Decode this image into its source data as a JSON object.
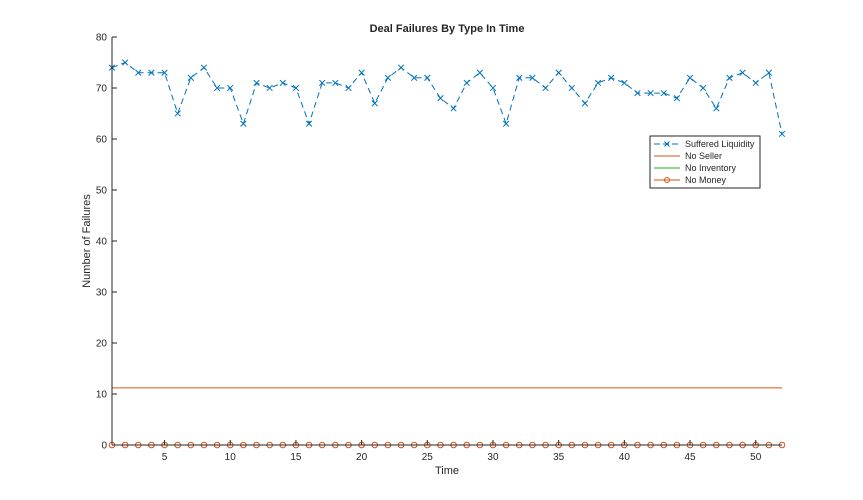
{
  "chart_data": {
    "type": "line",
    "title": "Deal Failures By Type In Time",
    "xlabel": "Time",
    "ylabel": "Number of Failures",
    "xlim": [
      1,
      52
    ],
    "ylim": [
      0,
      80
    ],
    "xticks": [
      5,
      10,
      15,
      20,
      25,
      30,
      35,
      40,
      45,
      50
    ],
    "yticks": [
      0,
      10,
      20,
      30,
      40,
      50,
      60,
      70,
      80
    ],
    "grid": false,
    "legend_position": "right",
    "x": [
      1,
      2,
      3,
      4,
      5,
      6,
      7,
      8,
      9,
      10,
      11,
      12,
      13,
      14,
      15,
      16,
      17,
      18,
      19,
      20,
      21,
      22,
      23,
      24,
      25,
      26,
      27,
      28,
      29,
      30,
      31,
      32,
      33,
      34,
      35,
      36,
      37,
      38,
      39,
      40,
      41,
      42,
      43,
      44,
      45,
      46,
      47,
      48,
      49,
      50,
      51,
      52
    ],
    "series": [
      {
        "name": "Suffered Liquidity",
        "color": "#0072bd",
        "line_style": "dashed",
        "marker": "x",
        "values": [
          74,
          75,
          73,
          73,
          73,
          65,
          72,
          74,
          70,
          70,
          63,
          71,
          70,
          71,
          70,
          63,
          71,
          71,
          70,
          73,
          67,
          72,
          74,
          72,
          72,
          68,
          66,
          71,
          73,
          70,
          63,
          72,
          72,
          70,
          73,
          70,
          67,
          71,
          72,
          71,
          69,
          69,
          69,
          68,
          72,
          70,
          66,
          72,
          73,
          71,
          73,
          61
        ]
      },
      {
        "name": "No Seller",
        "color": "#d95319",
        "line_style": "solid",
        "marker": "none",
        "values": [
          11.2,
          11.2,
          11.2,
          11.2,
          11.2,
          11.2,
          11.2,
          11.2,
          11.2,
          11.2,
          11.2,
          11.2,
          11.2,
          11.2,
          11.2,
          11.2,
          11.2,
          11.2,
          11.2,
          11.2,
          11.2,
          11.2,
          11.2,
          11.2,
          11.2,
          11.2,
          11.2,
          11.2,
          11.2,
          11.2,
          11.2,
          11.2,
          11.2,
          11.2,
          11.2,
          11.2,
          11.2,
          11.2,
          11.2,
          11.2,
          11.2,
          11.2,
          11.2,
          11.2,
          11.2,
          11.2,
          11.2,
          11.2,
          11.2,
          11.2,
          11.2,
          11.2
        ]
      },
      {
        "name": "No Inventory",
        "color": "#22b522",
        "line_style": "solid",
        "marker": "none",
        "values": [
          0,
          0,
          0,
          0,
          0,
          0,
          0,
          0,
          0,
          0,
          0,
          0,
          0,
          0,
          0,
          0,
          0,
          0,
          0,
          0,
          0,
          0,
          0,
          0,
          0,
          0,
          0,
          0,
          0,
          0,
          0,
          0,
          0,
          0,
          0,
          0,
          0,
          0,
          0,
          0,
          0,
          0,
          0,
          0,
          0,
          0,
          0,
          0,
          0,
          0,
          0,
          0
        ]
      },
      {
        "name": "No Money",
        "color": "#d95319",
        "line_style": "solid",
        "marker": "o",
        "values": [
          0,
          0,
          0,
          0,
          0,
          0,
          0,
          0,
          0,
          0,
          0,
          0,
          0,
          0,
          0,
          0,
          0,
          0,
          0,
          0,
          0,
          0,
          0,
          0,
          0,
          0,
          0,
          0,
          0,
          0,
          0,
          0,
          0,
          0,
          0,
          0,
          0,
          0,
          0,
          0,
          0,
          0,
          0,
          0,
          0,
          0,
          0,
          0,
          0,
          0,
          0,
          0
        ]
      }
    ]
  }
}
